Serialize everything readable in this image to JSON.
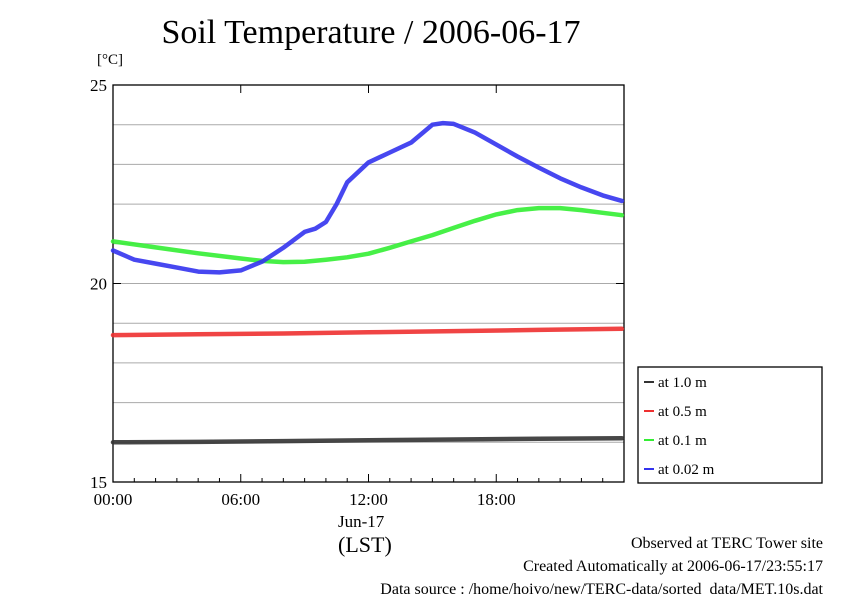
{
  "chart_data": {
    "type": "line",
    "title": "Soil Temperature / 2006-06-17",
    "ylabel": "[°C]",
    "xlabel": "(LST)",
    "date_label": "Jun-17",
    "xlim": [
      0,
      24
    ],
    "ylim": [
      15,
      25
    ],
    "xticks": [
      {
        "value": 0,
        "label": "00:00"
      },
      {
        "value": 6,
        "label": "06:00"
      },
      {
        "value": 12,
        "label": "12:00"
      },
      {
        "value": 18,
        "label": "18:00"
      }
    ],
    "yticks": [
      {
        "value": 15,
        "label": "15"
      },
      {
        "value": 20,
        "label": "20"
      },
      {
        "value": 25,
        "label": "25"
      }
    ],
    "ygrid": [
      16,
      17,
      18,
      19,
      20,
      21,
      22,
      23,
      24
    ],
    "legend_position": "right",
    "series": [
      {
        "name": "at 1.0 m",
        "color": "#333333",
        "x": [
          0,
          4,
          8,
          12,
          16,
          20,
          23.9
        ],
        "y": [
          16.0,
          16.01,
          16.03,
          16.05,
          16.07,
          16.09,
          16.1
        ]
      },
      {
        "name": "at 0.5 m",
        "color": "#ee3030",
        "x": [
          0,
          4,
          8,
          12,
          16,
          20,
          23.9
        ],
        "y": [
          18.7,
          18.72,
          18.74,
          18.77,
          18.8,
          18.83,
          18.86
        ]
      },
      {
        "name": "at 0.1 m",
        "color": "#33ee33",
        "x": [
          0,
          2,
          4,
          6,
          7,
          8,
          9,
          10,
          11,
          12,
          13,
          14,
          15,
          16,
          17,
          18,
          19,
          20,
          21,
          22,
          23,
          23.9
        ],
        "y": [
          21.06,
          20.91,
          20.76,
          20.63,
          20.57,
          20.54,
          20.55,
          20.6,
          20.66,
          20.75,
          20.9,
          21.06,
          21.22,
          21.4,
          21.58,
          21.74,
          21.85,
          21.9,
          21.9,
          21.85,
          21.78,
          21.72
        ]
      },
      {
        "name": "at 0.02 m",
        "color": "#3333ee",
        "x": [
          0,
          1,
          2,
          3,
          4,
          5,
          6,
          7,
          8,
          9,
          9.5,
          10,
          10.5,
          11,
          12,
          13,
          14,
          15,
          15.5,
          16,
          17,
          18,
          19,
          20,
          21,
          22,
          23,
          23.9
        ],
        "y": [
          20.83,
          20.6,
          20.5,
          20.4,
          20.3,
          20.28,
          20.33,
          20.55,
          20.9,
          21.3,
          21.38,
          21.55,
          22.0,
          22.55,
          23.05,
          23.3,
          23.55,
          24.0,
          24.04,
          24.02,
          23.8,
          23.5,
          23.2,
          22.92,
          22.65,
          22.42,
          22.22,
          22.08
        ]
      }
    ]
  },
  "footer": {
    "observed": "Observed at TERC Tower site",
    "created": "Created Automatically at 2006-06-17/23:55:17",
    "source": "Data source : /home/hoivo/new/TERC-data/sorted  data/MET.10s.dat"
  }
}
